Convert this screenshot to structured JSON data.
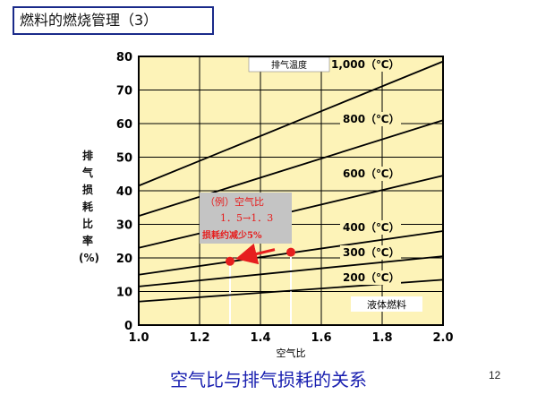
{
  "header": {
    "title": "燃料的燃烧管理（3）"
  },
  "footer": {
    "caption": "空气比与排气损耗的关系",
    "page_number": "12"
  },
  "colors": {
    "plot_bg": "#fdf3b8",
    "line": "#000000",
    "accent": "#e61e1e",
    "grid_white": "#ffffff",
    "caption": "#1a20b0"
  },
  "chart_data": {
    "type": "line",
    "title": "",
    "xlabel": "空气比",
    "ylabel_chars": [
      "排",
      "气",
      "损",
      "耗",
      "比",
      "率",
      "(%)"
    ],
    "xlim": [
      1.0,
      2.0
    ],
    "ylim": [
      0,
      80
    ],
    "xticks": [
      "1.0",
      "1.2",
      "1.4",
      "1.6",
      "1.8",
      "2.0"
    ],
    "yticks": [
      "0",
      "10",
      "20",
      "30",
      "40",
      "50",
      "60",
      "70",
      "80"
    ],
    "legend_title": "排气温度",
    "fuel_label": "液体燃料",
    "grid": true,
    "series": [
      {
        "name": "1,000（℃）",
        "x": [
          1.0,
          2.0
        ],
        "y": [
          41.5,
          78.5
        ]
      },
      {
        "name": "800（℃）",
        "x": [
          1.0,
          2.0
        ],
        "y": [
          32.5,
          61.0
        ]
      },
      {
        "name": "600（℃）",
        "x": [
          1.0,
          2.0
        ],
        "y": [
          23.0,
          44.5
        ]
      },
      {
        "name": "400（℃）",
        "x": [
          1.0,
          2.0
        ],
        "y": [
          15.0,
          28.0
        ]
      },
      {
        "name": "300（℃）",
        "x": [
          1.0,
          2.0
        ],
        "y": [
          11.5,
          20.5
        ]
      },
      {
        "name": "200（℃）",
        "x": [
          1.0,
          2.0
        ],
        "y": [
          7.0,
          13.5
        ]
      }
    ],
    "points": [
      {
        "x": 1.3,
        "y": 19.0
      },
      {
        "x": 1.5,
        "y": 21.7
      }
    ],
    "annotation": {
      "line1": "（例）空气比",
      "line2": "1．5→1．3",
      "line3": "损耗约减少5%"
    }
  }
}
